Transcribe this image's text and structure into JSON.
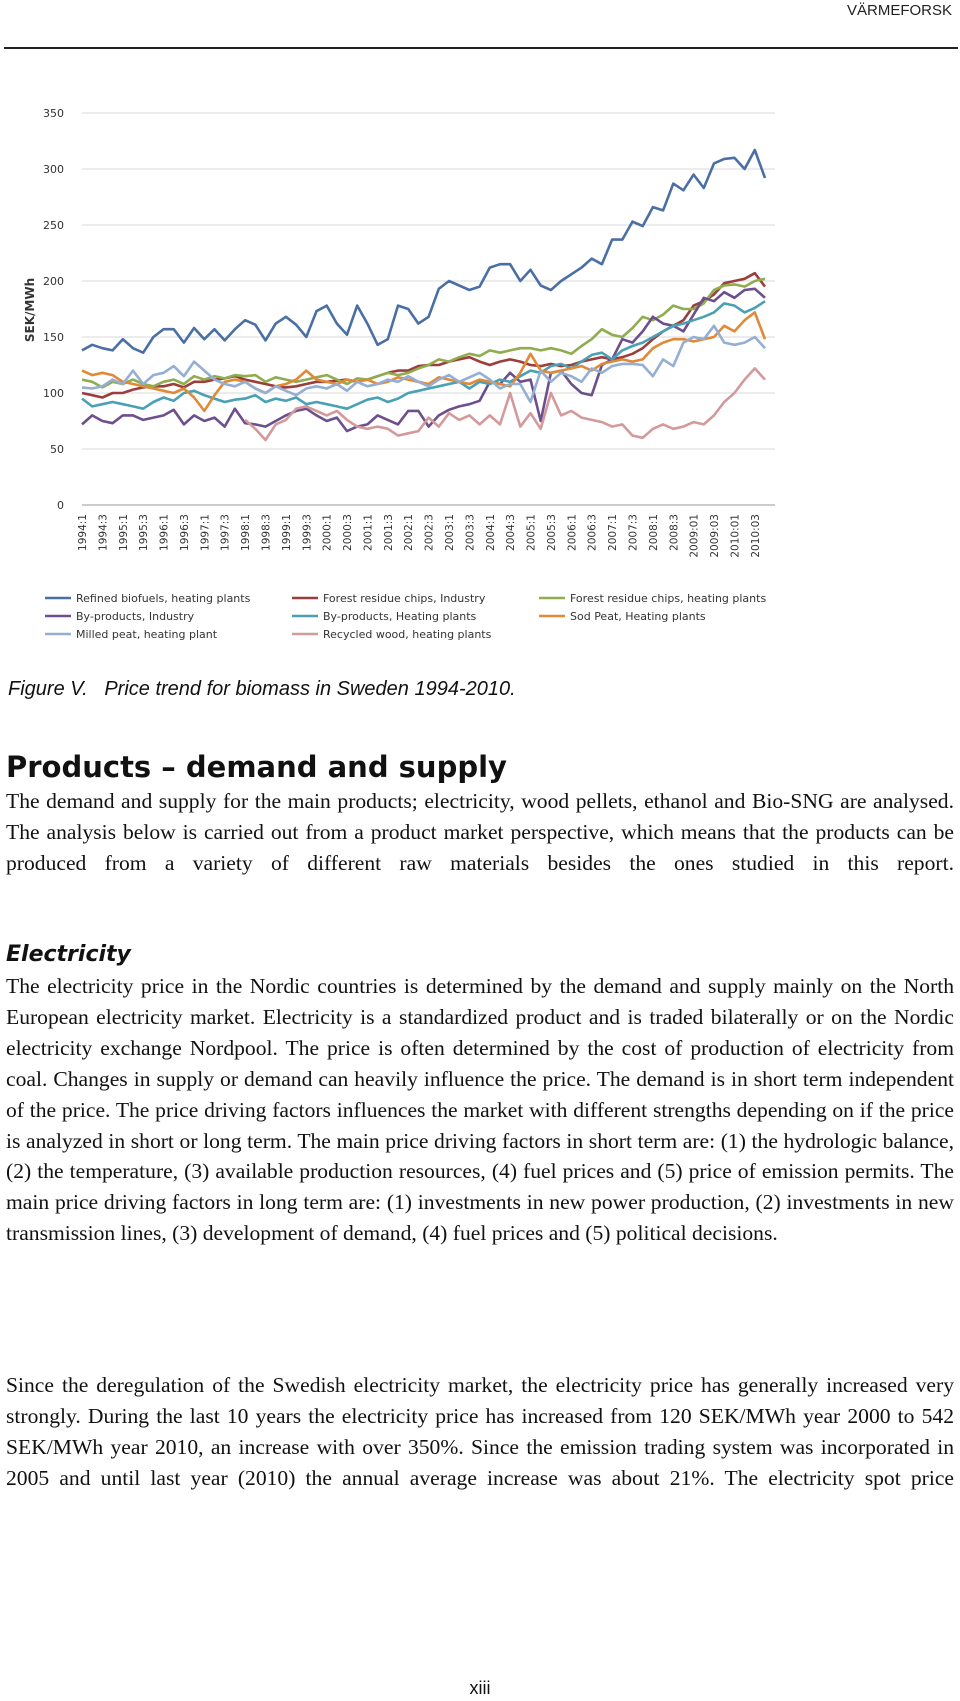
{
  "header": {
    "title": "VÄRMEFORSK"
  },
  "chart_data": {
    "type": "line",
    "ylabel": "SEK/MWh",
    "ylim": [
      0,
      350
    ],
    "yticks": [
      0,
      50,
      100,
      150,
      200,
      250,
      300,
      350
    ],
    "grid": true,
    "categories": [
      "1994:1",
      null,
      "1994:3",
      null,
      "1995:1",
      null,
      "1995:3",
      null,
      "1996:1",
      null,
      "1996:3",
      null,
      "1997:1",
      null,
      "1997:3",
      null,
      "1998:1",
      null,
      "1998:3",
      null,
      "1999:1",
      null,
      "1999:3",
      null,
      "2000:1",
      null,
      "2000:3",
      null,
      "2001:1",
      null,
      "2001:3",
      null,
      "2002:1",
      null,
      "2002:3",
      null,
      "2003:1",
      null,
      "2003:3",
      null,
      "2004:1",
      null,
      "2004:3",
      null,
      "2005:1",
      null,
      "2005:3",
      null,
      "2006:1",
      null,
      "2006:3",
      null,
      "2007:1",
      null,
      "2007:3",
      null,
      "2008:1",
      null,
      "2008:3",
      null,
      "2009:01",
      null,
      "2009:03",
      null,
      "2010:01",
      null,
      "2010:03",
      null
    ],
    "series": [
      {
        "name": "Refined biofuels, heating plants",
        "color": "#4a6fa5",
        "values": [
          138,
          143,
          140,
          138,
          148,
          140,
          136,
          150,
          157,
          157,
          145,
          158,
          148,
          157,
          147,
          157,
          165,
          161,
          147,
          162,
          168,
          161,
          150,
          173,
          178,
          162,
          152,
          178,
          162,
          143,
          148,
          178,
          175,
          162,
          168,
          193,
          200,
          196,
          192,
          195,
          212,
          215,
          215,
          200,
          210,
          196,
          192,
          200,
          206,
          212,
          220,
          215,
          237,
          237,
          253,
          249,
          266,
          263,
          287,
          281,
          295,
          283,
          305,
          309,
          310,
          300,
          317,
          292
        ]
      },
      {
        "name": "Forest residue chips, Industry",
        "color": "#9c3e3b",
        "values": [
          100,
          98,
          96,
          100,
          100,
          103,
          105,
          106,
          106,
          108,
          105,
          110,
          110,
          112,
          113,
          115,
          112,
          110,
          108,
          106,
          105,
          106,
          108,
          110,
          110,
          111,
          112,
          110,
          112,
          115,
          118,
          120,
          120,
          124,
          125,
          125,
          128,
          130,
          132,
          128,
          125,
          128,
          130,
          128,
          125,
          124,
          126,
          124,
          125,
          128,
          130,
          132,
          130,
          132,
          135,
          140,
          148,
          155,
          160,
          165,
          178,
          182,
          188,
          198,
          200,
          202,
          207,
          195
        ]
      },
      {
        "name": "Forest residue chips, heating plants",
        "color": "#8fad4f",
        "values": [
          112,
          110,
          105,
          110,
          108,
          112,
          108,
          106,
          110,
          112,
          108,
          115,
          112,
          115,
          113,
          116,
          115,
          116,
          110,
          114,
          112,
          110,
          112,
          114,
          116,
          112,
          108,
          113,
          112,
          115,
          118,
          116,
          118,
          122,
          125,
          130,
          128,
          132,
          135,
          133,
          138,
          136,
          138,
          140,
          140,
          138,
          140,
          138,
          135,
          142,
          148,
          157,
          152,
          150,
          158,
          168,
          165,
          170,
          178,
          175,
          175,
          180,
          192,
          196,
          197,
          195,
          200,
          202
        ]
      },
      {
        "name": "By-products, Industry",
        "color": "#6c4f8c",
        "values": [
          72,
          80,
          75,
          73,
          80,
          80,
          76,
          78,
          80,
          85,
          72,
          80,
          75,
          78,
          70,
          86,
          73,
          72,
          70,
          75,
          80,
          84,
          86,
          80,
          75,
          78,
          66,
          70,
          72,
          80,
          76,
          72,
          84,
          84,
          70,
          80,
          85,
          88,
          90,
          93,
          110,
          108,
          118,
          110,
          112,
          75,
          118,
          120,
          108,
          100,
          98,
          125,
          130,
          148,
          145,
          155,
          168,
          162,
          160,
          155,
          170,
          185,
          182,
          190,
          185,
          192,
          193,
          185
        ]
      },
      {
        "name": "By-products, Heating plants",
        "color": "#4aa0b5",
        "values": [
          95,
          88,
          90,
          92,
          90,
          88,
          86,
          92,
          96,
          93,
          100,
          102,
          98,
          95,
          92,
          94,
          95,
          98,
          92,
          95,
          93,
          96,
          90,
          92,
          90,
          88,
          86,
          90,
          94,
          96,
          92,
          95,
          100,
          102,
          104,
          106,
          108,
          110,
          104,
          110,
          108,
          112,
          110,
          115,
          120,
          118,
          124,
          126,
          122,
          128,
          134,
          136,
          130,
          138,
          142,
          145,
          150,
          155,
          160,
          162,
          165,
          168,
          172,
          180,
          178,
          172,
          176,
          182
        ]
      },
      {
        "name": "Sod Peat, Heating plants",
        "color": "#e08a38",
        "values": [
          120,
          116,
          118,
          116,
          110,
          108,
          106,
          104,
          102,
          100,
          104,
          96,
          84,
          98,
          110,
          112,
          110,
          104,
          100,
          106,
          108,
          112,
          120,
          112,
          110,
          108,
          112,
          110,
          112,
          108,
          110,
          114,
          112,
          110,
          108,
          114,
          112,
          110,
          108,
          112,
          110,
          108,
          106,
          118,
          135,
          120,
          118,
          120,
          122,
          124,
          120,
          126,
          128,
          130,
          128,
          130,
          140,
          145,
          148,
          148,
          146,
          148,
          150,
          160,
          155,
          165,
          172,
          148
        ]
      },
      {
        "name": "Milled peat, heating plant",
        "color": "#94aed4",
        "values": [
          105,
          104,
          106,
          112,
          108,
          120,
          108,
          116,
          118,
          124,
          115,
          128,
          120,
          112,
          108,
          106,
          110,
          104,
          100,
          106,
          102,
          98,
          104,
          106,
          104,
          108,
          102,
          110,
          106,
          108,
          112,
          110,
          115,
          110,
          106,
          112,
          116,
          110,
          114,
          118,
          112,
          104,
          108,
          108,
          92,
          120,
          110,
          118,
          115,
          110,
          122,
          118,
          124,
          126,
          126,
          125,
          115,
          130,
          124,
          145,
          150,
          148,
          160,
          145,
          143,
          145,
          150,
          140
        ]
      },
      {
        "name": "Recycled wood, heating plants",
        "color": "#d4999a",
        "values": [
          null,
          null,
          null,
          null,
          null,
          null,
          null,
          null,
          null,
          null,
          null,
          null,
          null,
          null,
          null,
          null,
          76,
          68,
          58,
          72,
          76,
          86,
          88,
          84,
          80,
          84,
          76,
          70,
          68,
          70,
          68,
          62,
          64,
          66,
          78,
          70,
          82,
          76,
          80,
          72,
          80,
          72,
          100,
          70,
          82,
          68,
          100,
          80,
          84,
          78,
          76,
          74,
          70,
          72,
          62,
          60,
          68,
          72,
          68,
          70,
          74,
          72,
          80,
          92,
          100,
          112,
          122,
          112
        ]
      }
    ]
  },
  "caption": "Figure V.   Price trend for biomass in Sweden 1994-2010.",
  "section": {
    "title": "Products – demand and supply",
    "paragraph": "The demand and supply for the main products; electricity, wood pellets, ethanol and Bio-SNG are analysed. The analysis below is carried out from a product market perspective, which means that the products can be produced from a variety of different raw materials besides the ones studied in this report."
  },
  "subsection": {
    "title": "Electricity",
    "paragraphs": [
      "The electricity price in the Nordic countries is determined by the demand and supply mainly on the North European electricity market. Electricity is a standardized product and is traded bilaterally or on the Nordic electricity exchange Nordpool. The price is often determined by the cost of production of electricity from coal. Changes in supply or demand can heavily influence the price. The demand is in short term independent of the price. The price driving factors influences the market with different strengths depending on if the price is analyzed in short or long term. The main price driving factors in short term are: (1) the hydrologic balance, (2) the temperature, (3) available production resources, (4) fuel prices and (5) price of emission permits. The main price driving factors in long term are: (1) investments in new power production, (2) investments in new transmission lines, (3) development of demand, (4) fuel prices and (5) political decisions.",
      "Since the deregulation of the Swedish electricity market, the electricity price has generally increased very strongly. During the last 10 years the electricity price has increased from 120 SEK/MWh year 2000 to 542 SEK/MWh year 2010, an increase with over 350%. Since the emission trading system was incorporated in 2005 and until last year (2010) the annual average increase was about 21%. The electricity spot price"
    ]
  },
  "page_number": "xiii"
}
